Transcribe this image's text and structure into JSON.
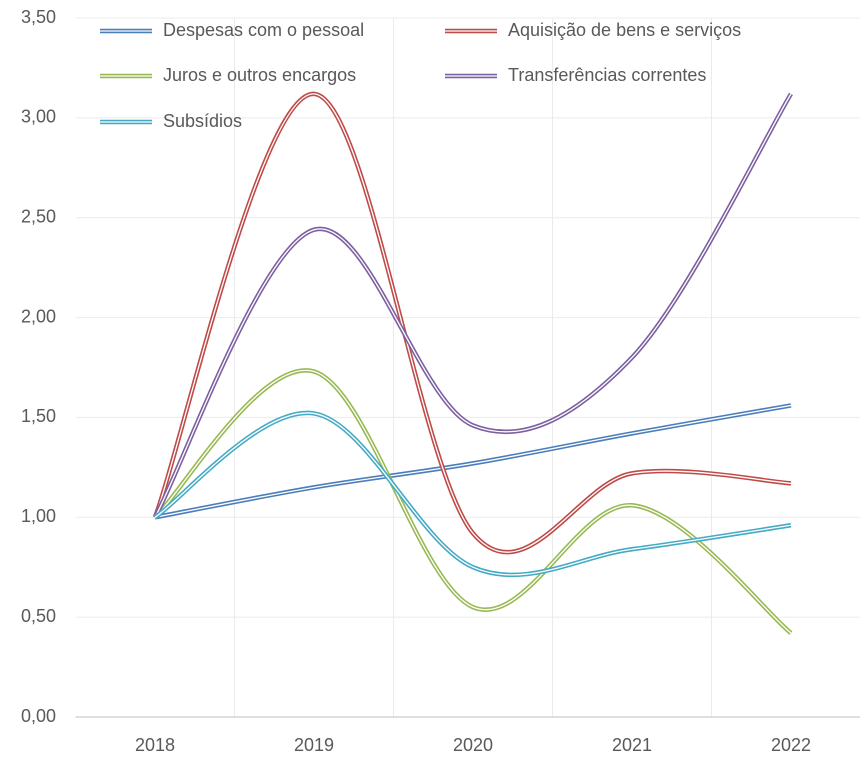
{
  "chart_data": {
    "type": "line",
    "categories": [
      "2018",
      "2019",
      "2020",
      "2021",
      "2022"
    ],
    "series": [
      {
        "name": "Despesas com o pessoal",
        "color": "#4a7ebb",
        "values": [
          1.0,
          1.15,
          1.27,
          1.42,
          1.56
        ]
      },
      {
        "name": "Aquisição de bens e serviços",
        "color": "#be4b48",
        "values": [
          1.0,
          3.12,
          0.92,
          1.22,
          1.17
        ]
      },
      {
        "name": "Juros e outros encargos",
        "color": "#98b954",
        "values": [
          1.0,
          1.73,
          0.55,
          1.06,
          0.42
        ]
      },
      {
        "name": "Transferências correntes",
        "color": "#7d60a0",
        "values": [
          1.0,
          2.44,
          1.46,
          1.8,
          3.12
        ]
      },
      {
        "name": "Subsídios",
        "color": "#46aac5",
        "values": [
          1.0,
          1.52,
          0.75,
          0.84,
          0.96
        ]
      }
    ],
    "ylim": [
      0,
      3.5
    ],
    "yticks": [
      {
        "value": 0,
        "label": "0,00"
      },
      {
        "value": 0.5,
        "label": "0,50"
      },
      {
        "value": 1,
        "label": "1,00"
      },
      {
        "value": 1.5,
        "label": "1,50"
      },
      {
        "value": 2,
        "label": "2,00"
      },
      {
        "value": 2.5,
        "label": "2,50"
      },
      {
        "value": 3,
        "label": "3,00"
      },
      {
        "value": 3.5,
        "label": "3,50"
      }
    ],
    "grid": true,
    "smooth": true,
    "legend": "top"
  }
}
